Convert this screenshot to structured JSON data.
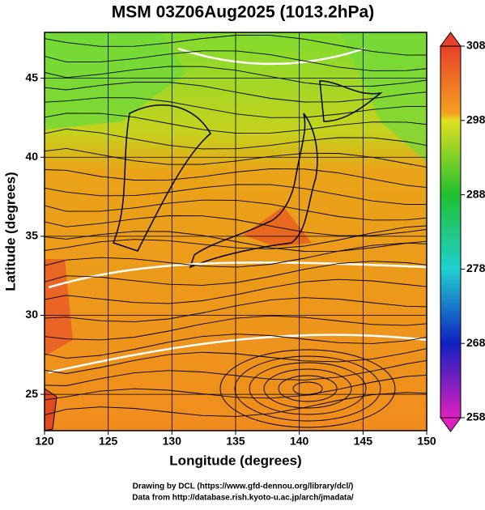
{
  "title": "MSM 03Z06Aug2025 (1013.2hPa)",
  "map": {
    "xlabel": "Longitude (degrees)",
    "ylabel": "Latitude  (degrees)",
    "xlim": [
      120,
      150
    ],
    "ylim": [
      22.7,
      47.9
    ],
    "xticks": [
      120,
      125,
      130,
      135,
      140,
      145,
      150
    ],
    "yticks": [
      25,
      30,
      35,
      40,
      45
    ],
    "grid": true
  },
  "colorbar": {
    "range": [
      258,
      308
    ],
    "ticks": [
      258,
      268,
      278,
      288,
      298,
      308
    ]
  },
  "credits": [
    "Drawing by DCL (https://www.gfd-dennou.org/library/dcl/)",
    "Data from http://database.rish.kyoto-u.ac.jp/arch/jmadata/"
  ]
}
